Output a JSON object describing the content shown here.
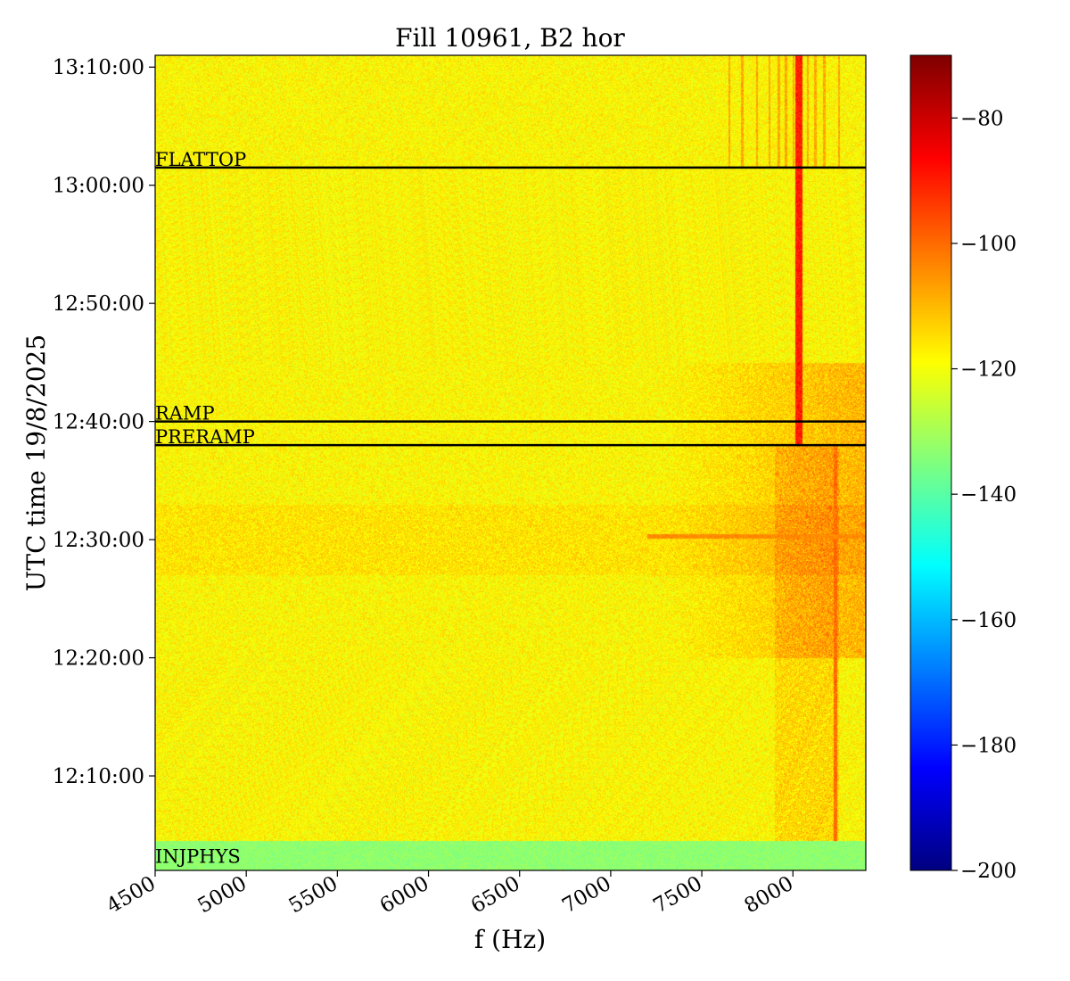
{
  "chart_data": {
    "type": "heatmap",
    "title": "Fill 10961, B2 hor",
    "xlabel": "f (Hz)",
    "ylabel": "UTC time 19/8/2025",
    "xlim": [
      4500,
      8400
    ],
    "x_ticks": [
      4500,
      5000,
      5500,
      6000,
      6500,
      7000,
      7500,
      8000
    ],
    "x_tick_labels": [
      "4500",
      "5000",
      "5500",
      "6000",
      "6500",
      "7000",
      "7500",
      "8000"
    ],
    "ylim": [
      "12:02:00",
      "13:11:00"
    ],
    "y_ticks": [
      "12:10:00",
      "12:20:00",
      "12:30:00",
      "12:40:00",
      "12:50:00",
      "13:00:00",
      "13:10:00"
    ],
    "colorbar": {
      "colormap": "jet",
      "range": [
        -200,
        -70
      ],
      "ticks": [
        -200,
        -180,
        -160,
        -140,
        -120,
        -100,
        -80
      ]
    },
    "beam_mode_markers": [
      {
        "label": "INJPHYS",
        "time": "12:02:30"
      },
      {
        "label": "PRERAMP",
        "time": "12:38:00"
      },
      {
        "label": "RAMP",
        "time": "12:40:00"
      },
      {
        "label": "FLATTOP",
        "time": "13:01:30"
      }
    ],
    "typical_level": {
      "background_before_ramp": -118,
      "injphys_band": -133,
      "hotspot_near_8050Hz_after_ramp": -90
    }
  }
}
